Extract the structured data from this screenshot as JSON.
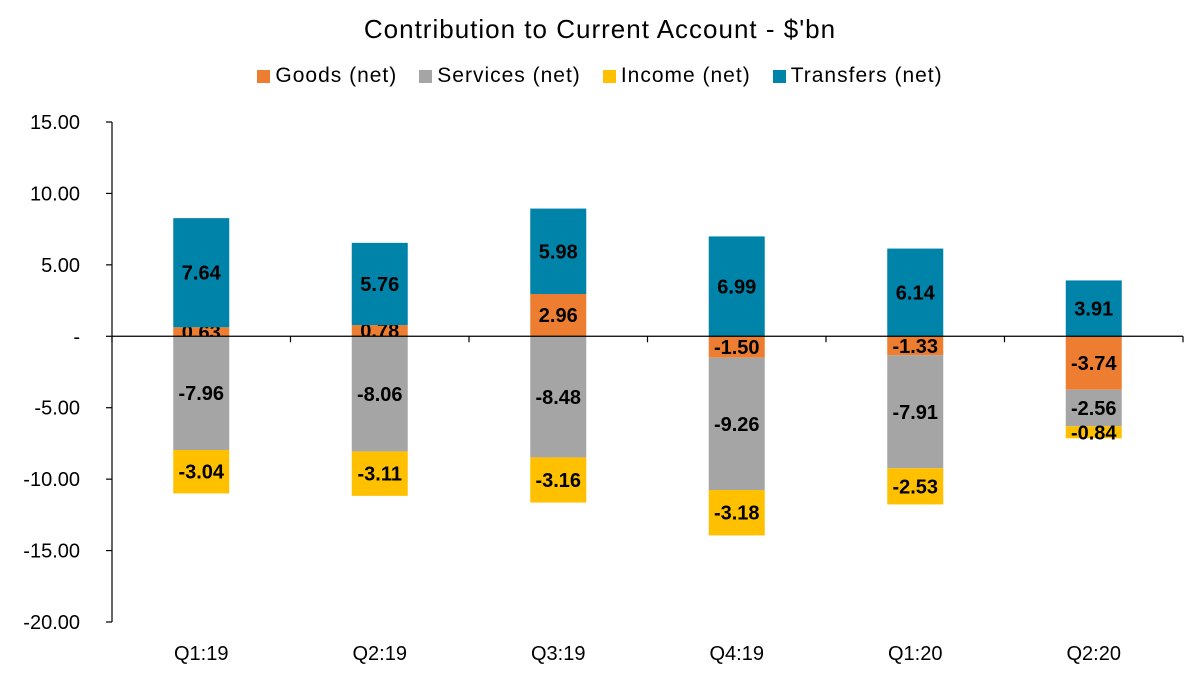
{
  "chart_data": {
    "type": "bar",
    "stacked": true,
    "title": "Contribution to Current Account - $'bn",
    "xlabel": "",
    "ylabel": "",
    "categories": [
      "Q1:19",
      "Q2:19",
      "Q3:19",
      "Q4:19",
      "Q1:20",
      "Q2:20"
    ],
    "series": [
      {
        "name": "Goods (net)",
        "color": "#ED7D31",
        "values": [
          0.63,
          0.78,
          2.96,
          -1.5,
          -1.33,
          -3.74
        ]
      },
      {
        "name": "Services (net)",
        "color": "#A5A5A5",
        "values": [
          -7.96,
          -8.06,
          -8.48,
          -9.26,
          -7.91,
          -2.56
        ]
      },
      {
        "name": "Income (net)",
        "color": "#FFC000",
        "values": [
          -3.04,
          -3.11,
          -3.16,
          -3.18,
          -2.53,
          -0.84
        ]
      },
      {
        "name": "Transfers (net)",
        "color": "#0083A9",
        "values": [
          7.64,
          5.76,
          5.98,
          6.99,
          6.14,
          3.91
        ]
      }
    ],
    "data_labels": [
      [
        "0.63",
        "0.78",
        "2.96",
        "-1.50",
        "-1.33",
        "-3.74"
      ],
      [
        "-7.96",
        "-8.06",
        "-8.48",
        "-9.26",
        "-7.91",
        "-2.56"
      ],
      [
        "-3.04",
        "-3.11",
        "-3.16",
        "-3.18",
        "-2.53",
        "-0.84"
      ],
      [
        "7.64",
        "5.76",
        "5.98",
        "6.99",
        "6.14",
        "3.91"
      ]
    ],
    "ylim": [
      -20,
      15
    ],
    "yticks": [
      15,
      10,
      5,
      0,
      -5,
      -10,
      -15,
      -20
    ],
    "ytick_labels": [
      "15.00",
      "10.00",
      "5.00",
      "-",
      "-5.00",
      "-10.00",
      "-15.00",
      "-20.00"
    ],
    "legend_position": "top",
    "grid": false
  }
}
